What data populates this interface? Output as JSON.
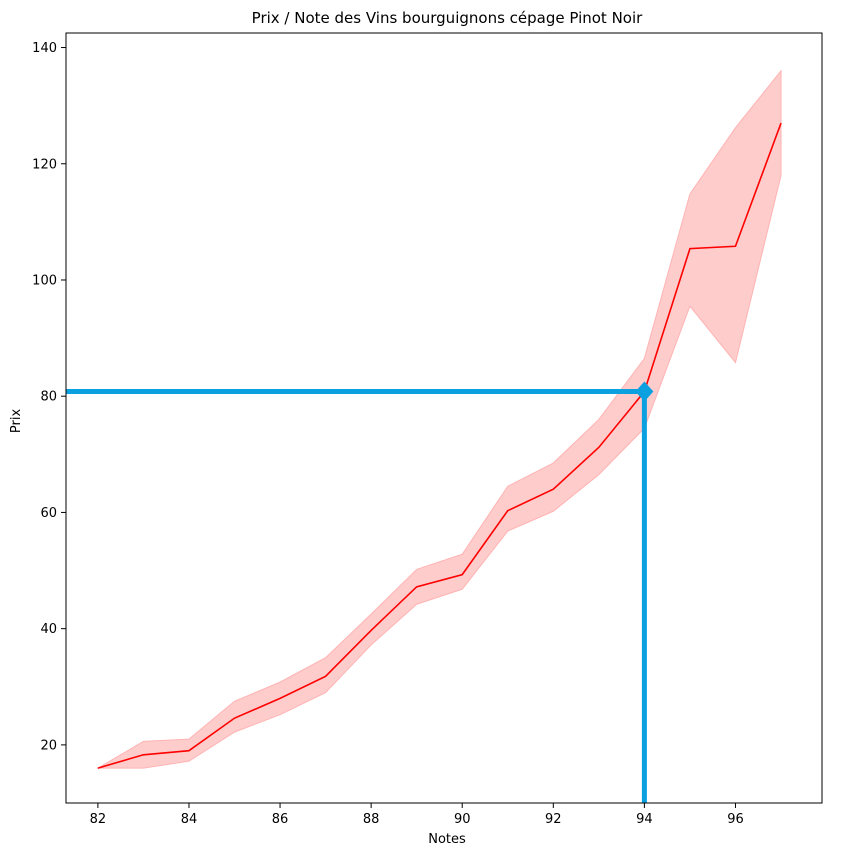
{
  "chart_data": {
    "type": "line",
    "title": "Prix / Note des Vins bourguignons cépage Pinot Noir",
    "xlabel": "Notes",
    "ylabel": "Prix",
    "xlim": [
      81.3,
      97.9
    ],
    "ylim": [
      10,
      142.5
    ],
    "xticks": [
      82,
      84,
      86,
      88,
      90,
      92,
      94,
      96
    ],
    "yticks": [
      20,
      40,
      60,
      80,
      100,
      120,
      140
    ],
    "grid": false,
    "series": [
      {
        "color": "#ff0000",
        "x": [
          82,
          83,
          84,
          85,
          86,
          87,
          88,
          89,
          90,
          91,
          92,
          93,
          94,
          95,
          96,
          97
        ],
        "y": [
          16.0,
          18.3,
          19.0,
          24.6,
          28.0,
          31.8,
          39.7,
          47.2,
          49.3,
          60.3,
          64.0,
          71.2,
          80.8,
          105.4,
          105.8,
          127.0
        ],
        "ci_low": [
          16.0,
          16.0,
          17.2,
          22.2,
          25.2,
          29.0,
          37.2,
          44.2,
          46.8,
          56.8,
          60.2,
          66.5,
          74.5,
          95.5,
          85.8,
          118.0
        ],
        "ci_high": [
          16.0,
          20.6,
          21.0,
          27.5,
          30.8,
          35.0,
          42.5,
          50.2,
          52.8,
          64.5,
          68.5,
          76.0,
          86.5,
          114.8,
          126.2,
          136.0
        ]
      }
    ],
    "ci_fill_color": "#ffcccc",
    "annotation": {
      "color": "#0ba0e0",
      "x": 94,
      "y": 80.8
    }
  }
}
